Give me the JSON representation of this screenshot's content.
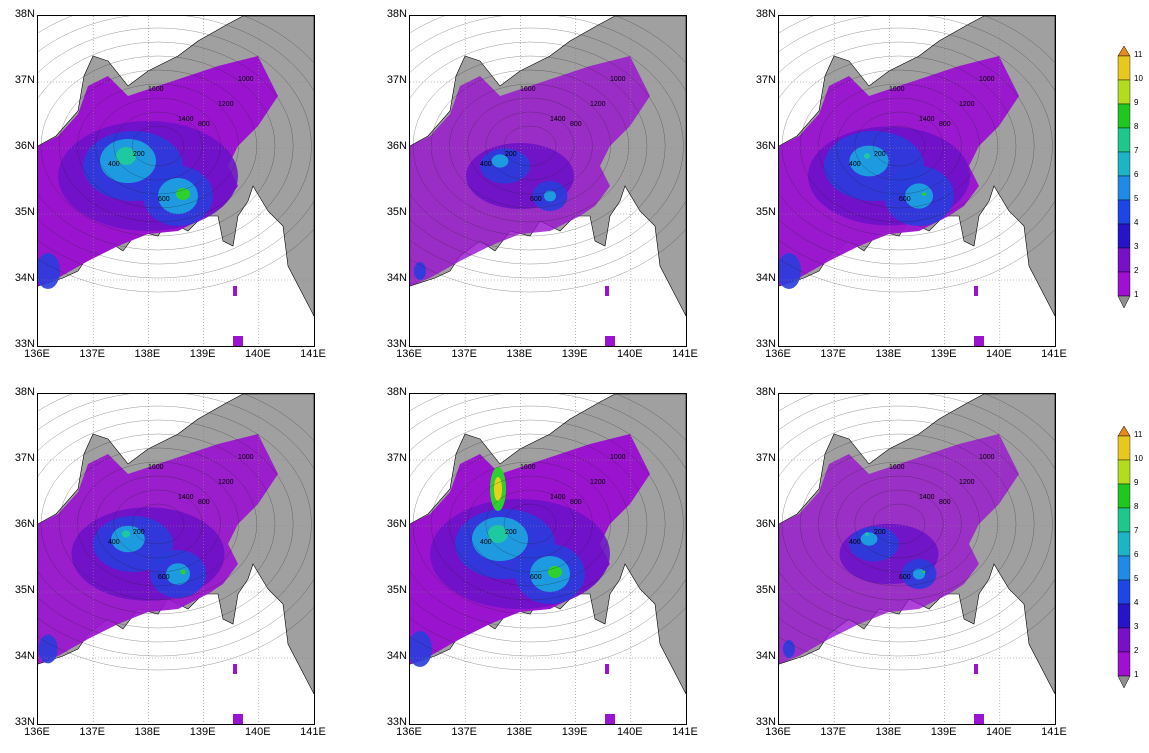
{
  "panels": [
    {
      "id": "top-left"
    },
    {
      "id": "top-middle"
    },
    {
      "id": "top-right"
    },
    {
      "id": "bottom-left"
    },
    {
      "id": "bottom-middle"
    },
    {
      "id": "bottom-right"
    }
  ],
  "axes": {
    "lat_ticks": [
      "38N",
      "37N",
      "36N",
      "35N",
      "34N",
      "33N"
    ],
    "lon_ticks": [
      "136E",
      "137E",
      "138E",
      "139E",
      "140E",
      "141E"
    ]
  },
  "colorbar": {
    "levels": [
      "11",
      "10",
      "9",
      "8",
      "7",
      "6",
      "5",
      "4",
      "3",
      "2",
      "1"
    ],
    "colors": [
      "#e68a1f",
      "#e6c81f",
      "#b4dc1e",
      "#1fc81f",
      "#1ec88c",
      "#1eb4c8",
      "#1e8ce6",
      "#1e46e6",
      "#2814c8",
      "#7810c8",
      "#a010d2",
      "#909090"
    ]
  },
  "colors": {
    "land_gray": "#a0a0a0",
    "purple": "#9a14d0",
    "violet": "#6a10c8",
    "blue": "#2a3cdc",
    "cyan": "#1e9be0",
    "teal": "#1ec8a0",
    "green": "#2ed02e",
    "yellow": "#e6d21e"
  },
  "contour_labels": [
    "200",
    "400",
    "600",
    "800",
    "1000",
    "1200",
    "1400",
    "1600"
  ]
}
